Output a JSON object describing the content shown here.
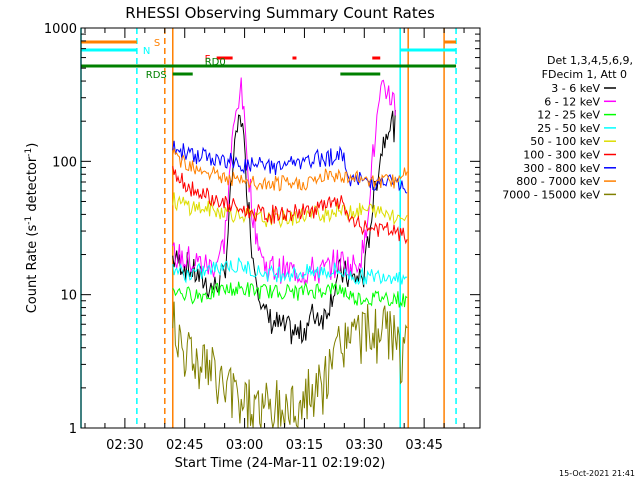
{
  "chart_data": {
    "type": "line",
    "title": "RHESSI Observing Summary Count Rates",
    "xlabel": "Start Time (24-Mar-11 02:19:02)",
    "ylabel_main": "Count Rate (s",
    "ylabel_sup1": "-1",
    "ylabel_mid": " detector",
    "ylabel_sup2": "-1",
    "ylabel_end": ")",
    "y_scale": "log",
    "ylim": [
      1,
      1000
    ],
    "xlim": [
      "02:19",
      "03:59"
    ],
    "x_ticks": [
      "02:30",
      "02:45",
      "03:00",
      "03:15",
      "03:30",
      "03:45"
    ],
    "y_ticks": [
      {
        "value": 1,
        "label": "1"
      },
      {
        "value": 10,
        "label": "10"
      },
      {
        "value": 100,
        "label": "100"
      },
      {
        "value": 1000,
        "label": "1000"
      }
    ],
    "footer_timestamp": "15-Oct-2021 21:41",
    "legend": {
      "header_line1": "Det 1,3,4,5,6,9,",
      "header_line2": "FDecim 1, Att 0",
      "placement": "right"
    },
    "series": [
      {
        "name": "3 - 6 keV",
        "color": "#000000",
        "x": [
          "02:42",
          "02:47",
          "02:52",
          "02:55",
          "02:57",
          "02:59",
          "03:02",
          "03:05",
          "03:10",
          "03:14",
          "03:17",
          "03:20",
          "03:24",
          "03:27",
          "03:30",
          "03:32",
          "03:34",
          "03:36",
          "03:38"
        ],
        "y": [
          19,
          15,
          11,
          14,
          90,
          260,
          20,
          7,
          5.5,
          5,
          7,
          7,
          15,
          13,
          14,
          45,
          110,
          200,
          180
        ]
      },
      {
        "name": "6 - 12 keV",
        "color": "#ff00ff",
        "x": [
          "02:42",
          "02:47",
          "02:52",
          "02:55",
          "02:57",
          "02:59",
          "03:02",
          "03:05",
          "03:10",
          "03:14",
          "03:17",
          "03:20",
          "03:24",
          "03:27",
          "03:30",
          "03:32",
          "03:34",
          "03:36",
          "03:38"
        ],
        "y": [
          20,
          18,
          16,
          25,
          150,
          400,
          40,
          16,
          15,
          15,
          15,
          15,
          18,
          16,
          22,
          100,
          300,
          350,
          250
        ]
      },
      {
        "name": "12 - 25 keV",
        "color": "#00ff00",
        "x": [
          "02:42",
          "02:45",
          "02:50",
          "02:55",
          "03:00",
          "03:05",
          "03:10",
          "03:15",
          "03:20",
          "03:24",
          "03:27",
          "03:30",
          "03:34",
          "03:38",
          "03:39",
          "03:41"
        ],
        "y": [
          11,
          10,
          10,
          11,
          11,
          10.5,
          10.5,
          10.5,
          11,
          11,
          9.5,
          9.5,
          9.5,
          9.5,
          9,
          9
        ]
      },
      {
        "name": "25 - 50 keV",
        "color": "#00ffff",
        "x": [
          "02:42",
          "02:45",
          "02:50",
          "02:55",
          "03:00",
          "03:05",
          "03:10",
          "03:15",
          "03:20",
          "03:24",
          "03:27",
          "03:30",
          "03:34",
          "03:38",
          "03:39",
          "03:41"
        ],
        "y": [
          16,
          14,
          15,
          17,
          16,
          14.5,
          14.5,
          14.5,
          15,
          15,
          13.5,
          13.5,
          14,
          14,
          14,
          13
        ]
      },
      {
        "name": "50 - 100 keV",
        "color": "#dddd00",
        "x": [
          "02:42",
          "02:45",
          "02:50",
          "02:55",
          "03:00",
          "03:05",
          "03:10",
          "03:15",
          "03:20",
          "03:24",
          "03:27",
          "03:30",
          "03:34",
          "03:38",
          "03:39",
          "03:41"
        ],
        "y": [
          50,
          47,
          44,
          42,
          39,
          37,
          37,
          39,
          41,
          43,
          43,
          43,
          42,
          40,
          38,
          38
        ]
      },
      {
        "name": "100 - 300 keV",
        "color": "#ff0000",
        "x": [
          "02:42",
          "02:45",
          "02:50",
          "02:55",
          "03:00",
          "03:05",
          "03:10",
          "03:15",
          "03:20",
          "03:24",
          "03:27",
          "03:30",
          "03:34",
          "03:38",
          "03:39",
          "03:41"
        ],
        "y": [
          85,
          68,
          56,
          48,
          42,
          40,
          40,
          42,
          46,
          50,
          34,
          32,
          31,
          30,
          28,
          27
        ]
      },
      {
        "name": "300 - 800 keV",
        "color": "#0000ff",
        "x": [
          "02:42",
          "02:45",
          "02:50",
          "02:55",
          "03:00",
          "03:05",
          "03:10",
          "03:15",
          "03:20",
          "03:24",
          "03:27",
          "03:30",
          "03:34",
          "03:38",
          "03:39",
          "03:41"
        ],
        "y": [
          120,
          118,
          108,
          100,
          94,
          92,
          94,
          98,
          108,
          112,
          72,
          72,
          70,
          68,
          65,
          62
        ]
      },
      {
        "name": "800 - 7000 keV",
        "color": "#ff8000",
        "x": [
          "02:42",
          "02:45",
          "02:50",
          "02:55",
          "03:00",
          "03:05",
          "03:10",
          "03:15",
          "03:20",
          "03:24",
          "03:27",
          "03:30",
          "03:34",
          "03:38",
          "03:39",
          "03:41"
        ],
        "y": [
          110,
          100,
          86,
          75,
          69,
          66,
          66,
          69,
          75,
          80,
          75,
          75,
          73,
          72,
          80,
          80
        ]
      },
      {
        "name": "7000 - 15000 keV",
        "color": "#808000",
        "x": [
          "02:42",
          "02:45",
          "02:50",
          "02:55",
          "03:00",
          "03:05",
          "03:10",
          "03:15",
          "03:20",
          "03:24",
          "03:27",
          "03:30",
          "03:34",
          "03:38",
          "03:39",
          "03:41"
        ],
        "y": [
          7,
          4,
          3,
          2,
          1.6,
          1.4,
          1.4,
          1.6,
          2,
          4.5,
          5,
          5,
          5.2,
          5,
          3.5,
          3.5
        ]
      }
    ],
    "flag_bars": [
      {
        "label": "S",
        "color": "#ff8000",
        "level": 0,
        "segments": [
          [
            "02:19",
            "02:33"
          ],
          [
            "03:50",
            "03:53"
          ]
        ]
      },
      {
        "label": "N",
        "color": "#00ffff",
        "level": 1,
        "segments": [
          [
            "02:19",
            "02:33"
          ],
          [
            "03:39",
            "03:53"
          ]
        ]
      },
      {
        "label": "F",
        "color": "#ff0000",
        "level": 2,
        "segments": [
          [
            "02:53",
            "02:57"
          ],
          [
            "03:12",
            "03:13"
          ],
          [
            "03:32",
            "03:34"
          ]
        ]
      },
      {
        "label": "RD0",
        "color": "#008000",
        "level": 3,
        "segments": [
          [
            "02:19",
            "03:53"
          ]
        ]
      },
      {
        "label": "RDS",
        "color": "#008000",
        "level": 4,
        "segments": [
          [
            "02:42",
            "02:47"
          ],
          [
            "03:24",
            "03:34"
          ]
        ]
      }
    ],
    "vertical_markers": [
      {
        "x": "02:19",
        "color": "#00ffff",
        "style": "solid"
      },
      {
        "x": "02:33",
        "color": "#00ffff",
        "style": "dashed"
      },
      {
        "x": "02:40",
        "color": "#ff8000",
        "style": "dashed"
      },
      {
        "x": "02:42",
        "color": "#ff8000",
        "style": "solid"
      },
      {
        "x": "03:39",
        "color": "#00ffff",
        "style": "solid"
      },
      {
        "x": "03:41",
        "color": "#ff8000",
        "style": "solid"
      },
      {
        "x": "03:50",
        "color": "#ff8000",
        "style": "solid"
      },
      {
        "x": "03:53",
        "color": "#00ffff",
        "style": "dashed"
      }
    ]
  }
}
